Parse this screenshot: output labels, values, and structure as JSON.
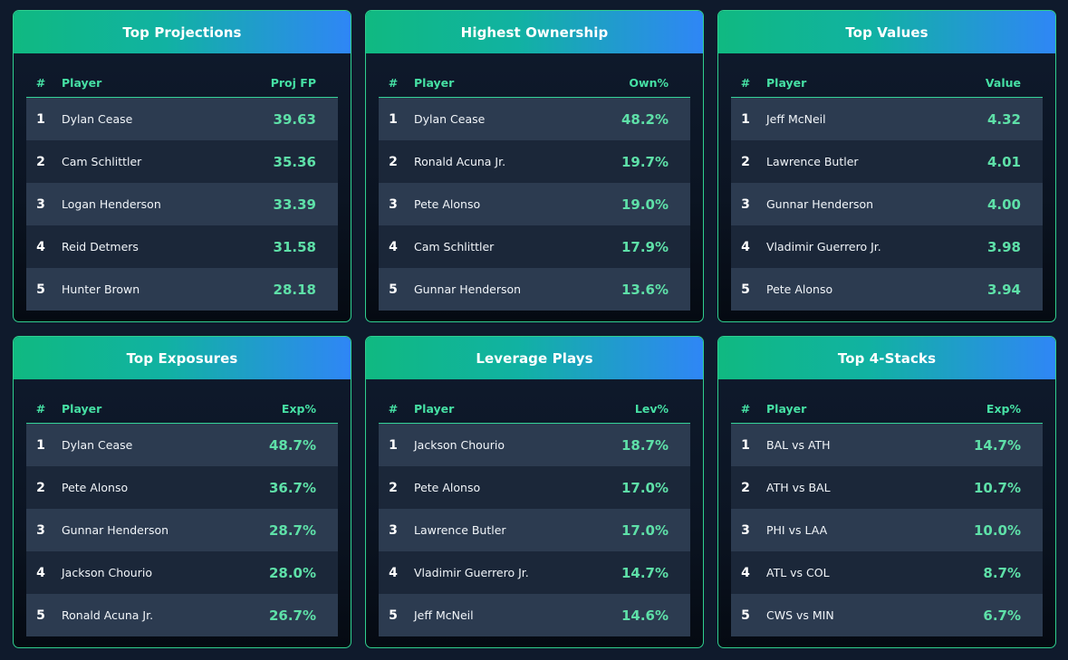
{
  "panels": [
    {
      "title": "Top Projections",
      "columns": [
        "#",
        "Player",
        "Proj FP"
      ],
      "rows": [
        {
          "rank": "1",
          "name": "Dylan Cease",
          "value": "39.63"
        },
        {
          "rank": "2",
          "name": "Cam Schlittler",
          "value": "35.36"
        },
        {
          "rank": "3",
          "name": "Logan Henderson",
          "value": "33.39"
        },
        {
          "rank": "4",
          "name": "Reid Detmers",
          "value": "31.58"
        },
        {
          "rank": "5",
          "name": "Hunter Brown",
          "value": "28.18"
        }
      ]
    },
    {
      "title": "Highest Ownership",
      "columns": [
        "#",
        "Player",
        "Own%"
      ],
      "rows": [
        {
          "rank": "1",
          "name": "Dylan Cease",
          "value": "48.2%"
        },
        {
          "rank": "2",
          "name": "Ronald Acuna Jr.",
          "value": "19.7%"
        },
        {
          "rank": "3",
          "name": "Pete Alonso",
          "value": "19.0%"
        },
        {
          "rank": "4",
          "name": "Cam Schlittler",
          "value": "17.9%"
        },
        {
          "rank": "5",
          "name": "Gunnar Henderson",
          "value": "13.6%"
        }
      ]
    },
    {
      "title": "Top Values",
      "columns": [
        "#",
        "Player",
        "Value"
      ],
      "rows": [
        {
          "rank": "1",
          "name": "Jeff McNeil",
          "value": "4.32"
        },
        {
          "rank": "2",
          "name": "Lawrence Butler",
          "value": "4.01"
        },
        {
          "rank": "3",
          "name": "Gunnar Henderson",
          "value": "4.00"
        },
        {
          "rank": "4",
          "name": "Vladimir Guerrero Jr.",
          "value": "3.98"
        },
        {
          "rank": "5",
          "name": "Pete Alonso",
          "value": "3.94"
        }
      ]
    },
    {
      "title": "Top Exposures",
      "columns": [
        "#",
        "Player",
        "Exp%"
      ],
      "rows": [
        {
          "rank": "1",
          "name": "Dylan Cease",
          "value": "48.7%"
        },
        {
          "rank": "2",
          "name": "Pete Alonso",
          "value": "36.7%"
        },
        {
          "rank": "3",
          "name": "Gunnar Henderson",
          "value": "28.7%"
        },
        {
          "rank": "4",
          "name": "Jackson Chourio",
          "value": "28.0%"
        },
        {
          "rank": "5",
          "name": "Ronald Acuna Jr.",
          "value": "26.7%"
        }
      ]
    },
    {
      "title": "Leverage Plays",
      "columns": [
        "#",
        "Player",
        "Lev%"
      ],
      "rows": [
        {
          "rank": "1",
          "name": "Jackson Chourio",
          "value": "18.7%"
        },
        {
          "rank": "2",
          "name": "Pete Alonso",
          "value": "17.0%"
        },
        {
          "rank": "3",
          "name": "Lawrence Butler",
          "value": "17.0%"
        },
        {
          "rank": "4",
          "name": "Vladimir Guerrero Jr.",
          "value": "14.7%"
        },
        {
          "rank": "5",
          "name": "Jeff McNeil",
          "value": "14.6%"
        }
      ]
    },
    {
      "title": "Top 4-Stacks",
      "columns": [
        "#",
        "Player",
        "Exp%"
      ],
      "rows": [
        {
          "rank": "1",
          "name": "BAL vs ATH",
          "value": "14.7%"
        },
        {
          "rank": "2",
          "name": "ATH vs BAL",
          "value": "10.7%"
        },
        {
          "rank": "3",
          "name": "PHI vs LAA",
          "value": "10.0%"
        },
        {
          "rank": "4",
          "name": "ATL vs COL",
          "value": "8.7%"
        },
        {
          "rank": "5",
          "name": "CWS vs MIN",
          "value": "6.7%"
        }
      ]
    }
  ],
  "colors": {
    "accent_green": "#10b981",
    "accent_blue": "#2f86f6",
    "value_text": "#5ee0a8",
    "row_light": "#2c3b50",
    "row_dark": "#1b2739"
  }
}
